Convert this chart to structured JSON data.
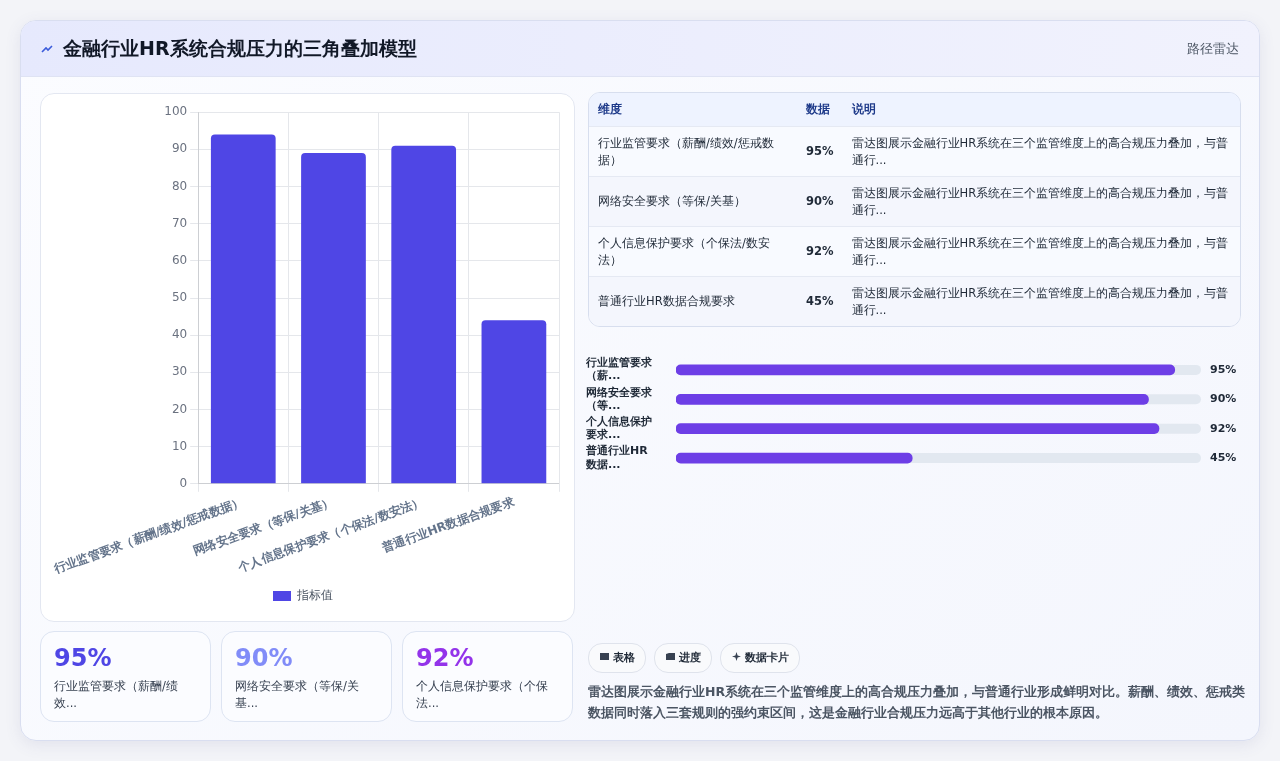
{
  "chart_data": [
    {
      "type": "bar",
      "title": "金融行业HR系统合规压力的三角叠加模型",
      "annotations": [
        "路径雷达"
      ],
      "categories": [
        "行业监管要求（薪酬/绩效/惩戒数据）",
        "网络安全要求（等保/关基）",
        "个人信息保护要求（个保法/数安法）",
        "普通行业HR数据合规要求"
      ],
      "series": [
        {
          "name": "指标值",
          "color": "#4f46e5",
          "values": [
            94,
            89,
            91,
            44
          ]
        }
      ],
      "ylim": [
        0,
        100
      ],
      "yticks": [
        0,
        10,
        20,
        30,
        40,
        50,
        60,
        70,
        80,
        90,
        100
      ],
      "grid": true,
      "legend": "bottom"
    },
    {
      "type": "bar",
      "orientation": "horizontal",
      "categories": [
        "行业监管要求（薪...",
        "网络安全要求（等...",
        "个人信息保护要求...",
        "普通行业HR数据..."
      ],
      "values": [
        95,
        90,
        92,
        45
      ],
      "value_labels": [
        "95%",
        "90%",
        "92%",
        "45%"
      ],
      "color": "#6d3ee6",
      "xlim": [
        0,
        100
      ],
      "tick_labels": "y"
    },
    {
      "type": "other",
      "categories": [
        "维度",
        "数据",
        "说明"
      ],
      "annotations": [
        "行业监管要求（薪酬/绩效/惩戒数据）",
        "95%",
        "雷达图展示金融行业HR系统在三个监管维度上的高合规压力叠加，与普通行...",
        "网络安全要求（等保/关基）",
        "90%",
        "雷达图展示金融行业HR系统在三个监管维度上的高合规压力叠加，与普通行...",
        "个人信息保护要求（个保法/数安法）",
        "92%",
        "雷达图展示金融行业HR系统在三个监管维度上的高合规压力叠加，与普通行...",
        "普通行业HR数据合规要求",
        "45%",
        "雷达图展示金融行业HR系统在三个监管维度上的高合规压力叠加，与普通行..."
      ]
    },
    {
      "type": "other",
      "colors": [
        "#4f46e5",
        "#818cf8",
        "#9333ea"
      ],
      "annotations": [
        "95%",
        "行业监管要求（薪酬/绩效...",
        "90%",
        "网络安全要求（等保/关基...",
        "92%",
        "个人信息保护要求（个保法..."
      ]
    },
    {
      "type": "other",
      "categories": [
        "表格",
        "进度",
        "数据卡片"
      ],
      "annotations": [
        "雷达图展示金融行业HR系统在三个监管维度上的高合规压力叠加，与普通行业形成鲜明对比。薪酬、绩效、惩戒类数据同时落入三套规则的强约束区间，这是金融行业合规压力远高于其他行业的根本原因。"
      ]
    }
  ]
}
